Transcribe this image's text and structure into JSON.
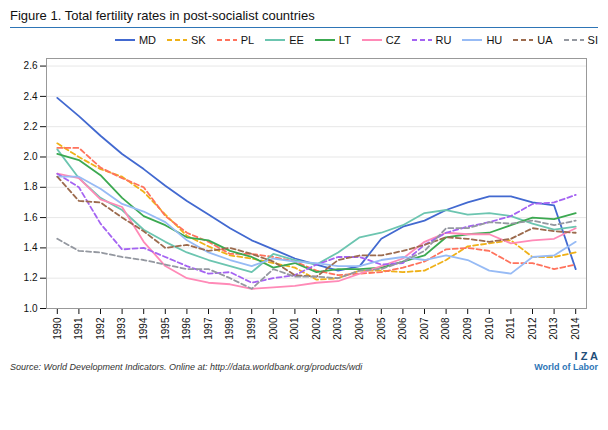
{
  "chart_data": {
    "type": "line",
    "title": "Figure 1. Total fertility rates in post-socialist countries",
    "annotations": [
      "Source: World Development Indicators. Online at: http://data.worldbank.org/products/wdi",
      "I Z A",
      "World of Labor"
    ],
    "x": [
      1990,
      1991,
      1992,
      1993,
      1994,
      1995,
      1996,
      1997,
      1998,
      1999,
      2000,
      2001,
      2002,
      2003,
      2004,
      2005,
      2006,
      2007,
      2008,
      2009,
      2010,
      2011,
      2012,
      2013,
      2014
    ],
    "series": [
      {
        "name": "MD",
        "line_style": "solid",
        "values": [
          2.39,
          2.27,
          2.14,
          2.02,
          1.92,
          1.81,
          1.71,
          1.62,
          1.53,
          1.45,
          1.39,
          1.33,
          1.29,
          1.25,
          1.28,
          1.46,
          1.54,
          1.58,
          1.65,
          1.7,
          1.74,
          1.74,
          1.7,
          1.68,
          1.26
        ]
      },
      {
        "name": "SK",
        "line_style": "dashed",
        "values": [
          2.09,
          2.0,
          1.92,
          1.87,
          1.77,
          1.62,
          1.48,
          1.41,
          1.35,
          1.33,
          1.3,
          1.27,
          1.19,
          1.2,
          1.25,
          1.25,
          1.24,
          1.25,
          1.32,
          1.41,
          1.43,
          1.45,
          1.34,
          1.34,
          1.37
        ]
      },
      {
        "name": "PL",
        "line_style": "dashed",
        "values": [
          2.06,
          2.06,
          1.93,
          1.86,
          1.8,
          1.61,
          1.5,
          1.44,
          1.36,
          1.36,
          1.34,
          1.31,
          1.25,
          1.22,
          1.23,
          1.24,
          1.27,
          1.31,
          1.39,
          1.4,
          1.38,
          1.3,
          1.3,
          1.26,
          1.29
        ]
      },
      {
        "name": "EE",
        "line_style": "solid",
        "values": [
          2.05,
          1.86,
          1.73,
          1.65,
          1.52,
          1.44,
          1.37,
          1.32,
          1.28,
          1.24,
          1.36,
          1.32,
          1.29,
          1.37,
          1.47,
          1.5,
          1.55,
          1.63,
          1.65,
          1.62,
          1.63,
          1.61,
          1.56,
          1.52,
          1.54
        ]
      },
      {
        "name": "LT",
        "line_style": "solid",
        "values": [
          2.02,
          1.98,
          1.88,
          1.73,
          1.61,
          1.55,
          1.47,
          1.45,
          1.38,
          1.34,
          1.27,
          1.3,
          1.24,
          1.26,
          1.26,
          1.27,
          1.31,
          1.35,
          1.47,
          1.49,
          1.5,
          1.55,
          1.6,
          1.59,
          1.63
        ]
      },
      {
        "name": "CZ",
        "line_style": "solid",
        "values": [
          1.89,
          1.86,
          1.72,
          1.67,
          1.44,
          1.28,
          1.2,
          1.17,
          1.16,
          1.13,
          1.14,
          1.15,
          1.17,
          1.18,
          1.23,
          1.28,
          1.33,
          1.44,
          1.5,
          1.49,
          1.49,
          1.43,
          1.45,
          1.46,
          1.53
        ]
      },
      {
        "name": "RU",
        "line_style": "dashed",
        "values": [
          1.89,
          1.8,
          1.56,
          1.39,
          1.4,
          1.34,
          1.28,
          1.23,
          1.24,
          1.17,
          1.2,
          1.22,
          1.29,
          1.34,
          1.34,
          1.29,
          1.3,
          1.42,
          1.5,
          1.54,
          1.57,
          1.61,
          1.69,
          1.7,
          1.75
        ]
      },
      {
        "name": "HU",
        "line_style": "solid",
        "values": [
          1.87,
          1.87,
          1.79,
          1.69,
          1.64,
          1.57,
          1.45,
          1.37,
          1.32,
          1.28,
          1.33,
          1.31,
          1.3,
          1.28,
          1.28,
          1.32,
          1.34,
          1.32,
          1.35,
          1.32,
          1.25,
          1.23,
          1.34,
          1.35,
          1.44
        ]
      },
      {
        "name": "UA",
        "line_style": "dashed",
        "values": [
          1.87,
          1.71,
          1.7,
          1.6,
          1.51,
          1.4,
          1.42,
          1.38,
          1.4,
          1.36,
          1.31,
          1.22,
          1.21,
          1.32,
          1.35,
          1.35,
          1.38,
          1.42,
          1.47,
          1.46,
          1.44,
          1.46,
          1.53,
          1.51,
          1.5
        ]
      },
      {
        "name": "SI",
        "line_style": "dashed",
        "values": [
          1.46,
          1.38,
          1.37,
          1.34,
          1.32,
          1.29,
          1.26,
          1.26,
          1.2,
          1.13,
          1.26,
          1.21,
          1.21,
          1.2,
          1.25,
          1.26,
          1.31,
          1.38,
          1.53,
          1.53,
          1.57,
          1.56,
          1.58,
          1.55,
          1.58
        ]
      }
    ],
    "xlim": [
      1989.5,
      2014.5
    ],
    "xticks": [
      1990,
      1991,
      1992,
      1993,
      1994,
      1995,
      1996,
      1997,
      1998,
      1999,
      2000,
      2001,
      2002,
      2003,
      2004,
      2005,
      2006,
      2007,
      2008,
      2009,
      2010,
      2011,
      2012,
      2013,
      2014
    ],
    "ylim": [
      1.0,
      2.65
    ],
    "yticks": [
      {
        "value": 1.0,
        "label": "1.0"
      },
      1.2,
      1.4,
      1.6,
      1.8,
      {
        "value": 2.0,
        "label": "2.0"
      },
      2.2,
      2.4,
      2.6
    ],
    "grid": true,
    "legend": "upper right"
  }
}
